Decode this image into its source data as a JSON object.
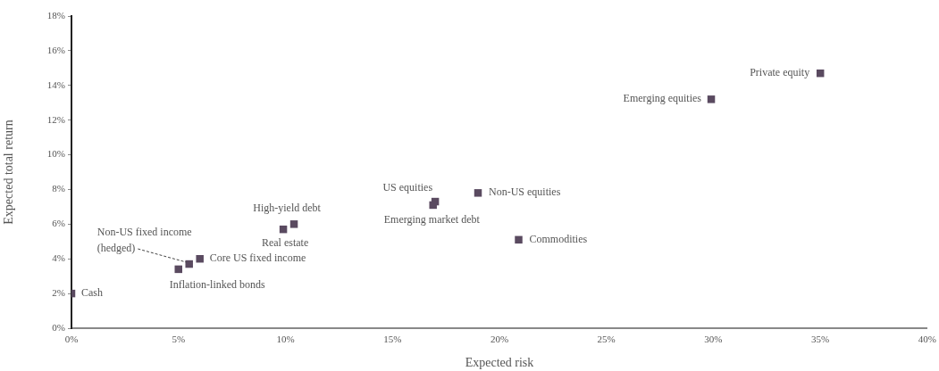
{
  "chart_data": {
    "type": "scatter",
    "xlabel": "Expected risk",
    "ylabel": "Expected total return",
    "x": [
      0,
      5.0,
      5.5,
      6.0,
      9.9,
      10.4,
      17.0,
      16.9,
      19.0,
      20.9,
      29.9,
      35.0
    ],
    "series": [
      {
        "color": "#5a4a60",
        "values": [
          2.0,
          3.4,
          3.7,
          4.0,
          5.7,
          6.0,
          7.3,
          7.1,
          7.8,
          5.1,
          13.2,
          14.7
        ]
      }
    ],
    "xlim": [
      0,
      40
    ],
    "xticks": [
      {
        "value": 0,
        "label": "0%"
      },
      {
        "value": 5,
        "label": "5%"
      },
      {
        "value": 10,
        "label": "10%"
      },
      {
        "value": 15,
        "label": "15%"
      },
      {
        "value": 20,
        "label": "20%"
      },
      {
        "value": 25,
        "label": "25%"
      },
      {
        "value": 30,
        "label": "30%"
      },
      {
        "value": 35,
        "label": "35%"
      },
      {
        "value": 40,
        "label": "40%"
      }
    ],
    "ylim": [
      0,
      18
    ],
    "yticks": [
      {
        "value": 0,
        "label": "0%"
      },
      {
        "value": 2,
        "label": "2%"
      },
      {
        "value": 4,
        "label": "4%"
      },
      {
        "value": 6,
        "label": "6%"
      },
      {
        "value": 8,
        "label": "8%"
      },
      {
        "value": 10,
        "label": "10%"
      },
      {
        "value": 12,
        "label": "12%"
      },
      {
        "value": 14,
        "label": "14%"
      },
      {
        "value": 16,
        "label": "16%"
      },
      {
        "value": 18,
        "label": "18%"
      }
    ],
    "grid": false,
    "legend": false,
    "marker": "square",
    "annotations": [
      {
        "text": "Cash",
        "x": 0,
        "y": 2.0
      },
      {
        "text": "Inflation-linked bonds",
        "x": 5.0,
        "y": 3.4
      },
      {
        "text": "Non-US fixed income\n(hedged)",
        "x": 5.5,
        "y": 3.7
      },
      {
        "text": "Core US fixed income",
        "x": 6.0,
        "y": 4.0
      },
      {
        "text": "Real estate",
        "x": 9.9,
        "y": 5.7
      },
      {
        "text": "High-yield debt",
        "x": 10.4,
        "y": 6.0
      },
      {
        "text": "US equities",
        "x": 17.0,
        "y": 7.3
      },
      {
        "text": "Emerging market debt",
        "x": 16.9,
        "y": 7.1
      },
      {
        "text": "Non-US equities",
        "x": 19.0,
        "y": 7.8
      },
      {
        "text": "Commodities",
        "x": 20.9,
        "y": 5.1
      },
      {
        "text": "Emerging equities",
        "x": 29.9,
        "y": 13.2
      },
      {
        "text": "Private equity",
        "x": 35.0,
        "y": 14.7
      }
    ]
  }
}
